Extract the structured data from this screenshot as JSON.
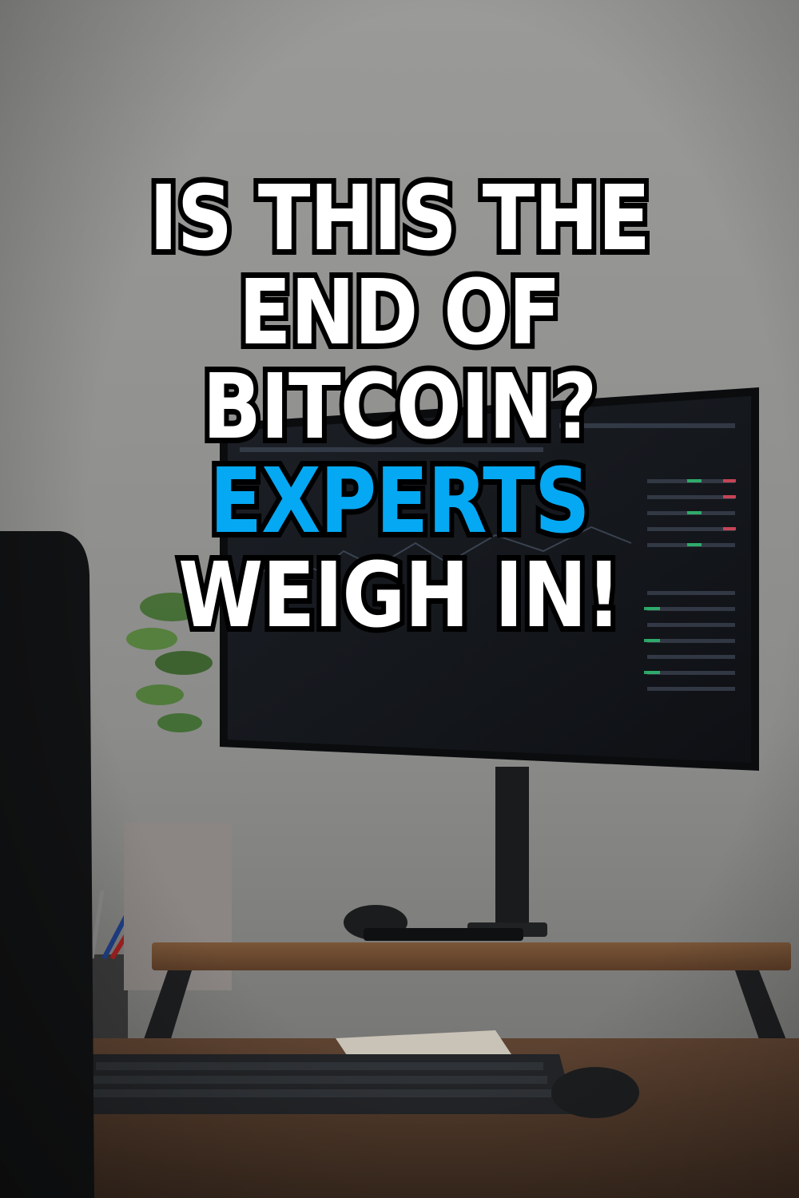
{
  "headline": {
    "lines": [
      {
        "text": "IS THIS THE",
        "color": "#ffffff"
      },
      {
        "text": "END OF",
        "color": "#ffffff"
      },
      {
        "text": "BITCOIN?",
        "color": "#ffffff"
      },
      {
        "text": "EXPERTS",
        "color": "#05a8f3"
      },
      {
        "text": "WEIGH IN!",
        "color": "#ffffff"
      }
    ]
  },
  "scene": {
    "wall_color": "#8e8e8c",
    "desk_color": "#6b4a33",
    "monitor_color": "#16191e",
    "chair_color": "#111213"
  }
}
